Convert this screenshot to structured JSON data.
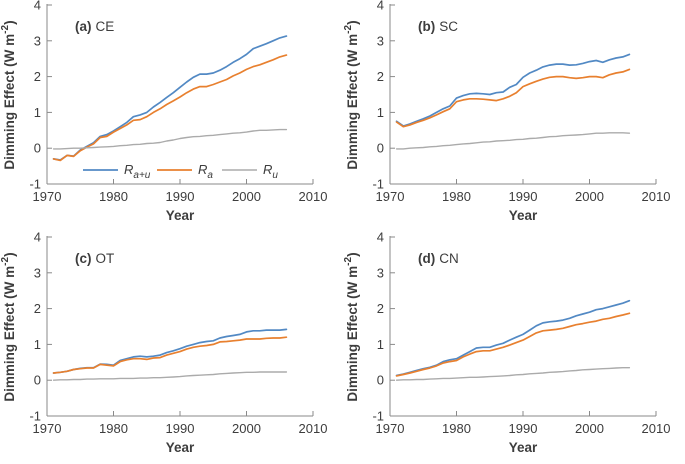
{
  "figure": {
    "background": "#ffffff",
    "text_color": "#3d3d3d",
    "axis_color": "#8a8a8a",
    "ylabel": {
      "pre": "Dimming Effect (W m",
      "sup": "-2",
      "post": ")"
    },
    "xlabel": "Year",
    "legend": {
      "position": "inside-bottom-left-panel-a",
      "entries": [
        {
          "main": "R",
          "sub": "a+u",
          "color": "#5289c4"
        },
        {
          "main": "R",
          "sub": "a",
          "color": "#e8802f"
        },
        {
          "main": "R",
          "sub": "u",
          "color": "#ababab"
        }
      ]
    }
  },
  "chart_data": [
    {
      "type": "line",
      "panel": "a",
      "title_bold": "(a)",
      "region": "CE",
      "xlabel": "Year",
      "ylabel": "Dimming Effect (W m^-2)",
      "xlim": [
        1970,
        2010
      ],
      "ylim": [
        -1,
        4
      ],
      "xticks": [
        1970,
        1980,
        1990,
        2000,
        2010
      ],
      "yticks": [
        -1,
        0,
        1,
        2,
        3,
        4
      ],
      "x_start_year": 1971,
      "x_end_year": 2006,
      "grid": false,
      "legend_visible": true,
      "series": [
        {
          "name": "R_a+u",
          "key": "ra+u",
          "color": "#5289c4",
          "values": [
            -0.3,
            -0.33,
            -0.2,
            -0.22,
            -0.05,
            0.05,
            0.15,
            0.33,
            0.38,
            0.48,
            0.6,
            0.72,
            0.88,
            0.93,
            1.0,
            1.15,
            1.28,
            1.42,
            1.55,
            1.7,
            1.85,
            1.98,
            2.07,
            2.07,
            2.1,
            2.18,
            2.28,
            2.4,
            2.5,
            2.62,
            2.78,
            2.85,
            2.92,
            3.0,
            3.08,
            3.13
          ]
        },
        {
          "name": "R_a",
          "key": "ra",
          "color": "#e8802f",
          "values": [
            -0.3,
            -0.34,
            -0.2,
            -0.23,
            -0.07,
            0.03,
            0.12,
            0.3,
            0.33,
            0.45,
            0.55,
            0.65,
            0.78,
            0.8,
            0.88,
            1.0,
            1.1,
            1.22,
            1.32,
            1.43,
            1.55,
            1.65,
            1.72,
            1.72,
            1.78,
            1.85,
            1.92,
            2.02,
            2.1,
            2.2,
            2.28,
            2.33,
            2.4,
            2.47,
            2.55,
            2.6
          ]
        },
        {
          "name": "R_u",
          "key": "ru",
          "color": "#ababab",
          "values": [
            -0.02,
            -0.02,
            -0.01,
            0.0,
            0.0,
            0.01,
            0.02,
            0.03,
            0.04,
            0.05,
            0.07,
            0.08,
            0.1,
            0.11,
            0.13,
            0.14,
            0.16,
            0.2,
            0.23,
            0.27,
            0.3,
            0.32,
            0.33,
            0.35,
            0.36,
            0.38,
            0.4,
            0.42,
            0.43,
            0.45,
            0.48,
            0.5,
            0.5,
            0.51,
            0.52,
            0.52
          ]
        }
      ]
    },
    {
      "type": "line",
      "panel": "b",
      "title_bold": "(b)",
      "region": "SC",
      "xlabel": "Year",
      "ylabel": "Dimming Effect (W m^-2)",
      "xlim": [
        1970,
        2010
      ],
      "ylim": [
        -1,
        4
      ],
      "xticks": [
        1970,
        1980,
        1990,
        2000,
        2010
      ],
      "yticks": [
        -1,
        0,
        1,
        2,
        3,
        4
      ],
      "x_start_year": 1971,
      "x_end_year": 2006,
      "grid": false,
      "legend_visible": false,
      "series": [
        {
          "name": "R_a+u",
          "key": "ra+u",
          "color": "#5289c4",
          "values": [
            0.75,
            0.62,
            0.68,
            0.75,
            0.82,
            0.9,
            1.0,
            1.1,
            1.18,
            1.4,
            1.47,
            1.52,
            1.53,
            1.52,
            1.5,
            1.55,
            1.57,
            1.7,
            1.78,
            1.98,
            2.1,
            2.18,
            2.27,
            2.32,
            2.35,
            2.35,
            2.32,
            2.33,
            2.37,
            2.42,
            2.45,
            2.4,
            2.47,
            2.52,
            2.55,
            2.62
          ]
        },
        {
          "name": "R_a",
          "key": "ra",
          "color": "#e8802f",
          "values": [
            0.73,
            0.6,
            0.65,
            0.72,
            0.78,
            0.85,
            0.93,
            1.02,
            1.1,
            1.3,
            1.35,
            1.38,
            1.38,
            1.37,
            1.35,
            1.33,
            1.38,
            1.45,
            1.55,
            1.72,
            1.8,
            1.87,
            1.93,
            1.98,
            2.0,
            2.0,
            1.97,
            1.95,
            1.97,
            2.0,
            2.0,
            1.97,
            2.05,
            2.1,
            2.13,
            2.2
          ]
        },
        {
          "name": "R_u",
          "key": "ru",
          "color": "#ababab",
          "values": [
            -0.02,
            -0.02,
            0.0,
            0.01,
            0.02,
            0.04,
            0.05,
            0.07,
            0.08,
            0.1,
            0.12,
            0.13,
            0.15,
            0.17,
            0.18,
            0.2,
            0.21,
            0.22,
            0.24,
            0.25,
            0.27,
            0.28,
            0.3,
            0.32,
            0.33,
            0.35,
            0.36,
            0.37,
            0.38,
            0.4,
            0.42,
            0.42,
            0.43,
            0.43,
            0.43,
            0.42
          ]
        }
      ]
    },
    {
      "type": "line",
      "panel": "c",
      "title_bold": "(c)",
      "region": "OT",
      "xlabel": "Year",
      "ylabel": "Dimming Effect (W m^-2)",
      "xlim": [
        1970,
        2010
      ],
      "ylim": [
        -1,
        4
      ],
      "xticks": [
        1970,
        1980,
        1990,
        2000,
        2010
      ],
      "yticks": [
        -1,
        0,
        1,
        2,
        3,
        4
      ],
      "x_start_year": 1971,
      "x_end_year": 2006,
      "grid": false,
      "legend_visible": false,
      "series": [
        {
          "name": "R_a+u",
          "key": "ra+u",
          "color": "#5289c4",
          "values": [
            0.2,
            0.22,
            0.25,
            0.3,
            0.33,
            0.35,
            0.35,
            0.45,
            0.44,
            0.42,
            0.55,
            0.6,
            0.65,
            0.67,
            0.65,
            0.67,
            0.7,
            0.77,
            0.82,
            0.88,
            0.95,
            1.0,
            1.05,
            1.08,
            1.1,
            1.18,
            1.22,
            1.25,
            1.28,
            1.35,
            1.38,
            1.38,
            1.4,
            1.4,
            1.4,
            1.42
          ]
        },
        {
          "name": "R_a",
          "key": "ra",
          "color": "#e8802f",
          "values": [
            0.2,
            0.22,
            0.25,
            0.3,
            0.32,
            0.34,
            0.34,
            0.44,
            0.42,
            0.4,
            0.52,
            0.57,
            0.6,
            0.6,
            0.58,
            0.62,
            0.63,
            0.7,
            0.75,
            0.8,
            0.87,
            0.92,
            0.95,
            0.97,
            1.0,
            1.07,
            1.08,
            1.1,
            1.12,
            1.15,
            1.15,
            1.15,
            1.17,
            1.18,
            1.18,
            1.2
          ]
        },
        {
          "name": "R_u",
          "key": "ru",
          "color": "#ababab",
          "values": [
            0.0,
            0.01,
            0.01,
            0.02,
            0.02,
            0.03,
            0.03,
            0.04,
            0.04,
            0.04,
            0.05,
            0.05,
            0.05,
            0.06,
            0.06,
            0.07,
            0.07,
            0.08,
            0.09,
            0.1,
            0.12,
            0.13,
            0.14,
            0.15,
            0.16,
            0.18,
            0.19,
            0.2,
            0.21,
            0.22,
            0.22,
            0.23,
            0.23,
            0.23,
            0.23,
            0.23
          ]
        }
      ]
    },
    {
      "type": "line",
      "panel": "d",
      "title_bold": "(d)",
      "region": "CN",
      "xlabel": "Year",
      "ylabel": "Dimming Effect (W m^-2)",
      "xlim": [
        1970,
        2010
      ],
      "ylim": [
        -1,
        4
      ],
      "xticks": [
        1970,
        1980,
        1990,
        2000,
        2010
      ],
      "yticks": [
        -1,
        0,
        1,
        2,
        3,
        4
      ],
      "x_start_year": 1971,
      "x_end_year": 2006,
      "grid": false,
      "legend_visible": false,
      "series": [
        {
          "name": "R_a+u",
          "key": "ra+u",
          "color": "#5289c4",
          "values": [
            0.13,
            0.17,
            0.22,
            0.27,
            0.32,
            0.36,
            0.42,
            0.52,
            0.57,
            0.6,
            0.7,
            0.8,
            0.9,
            0.92,
            0.92,
            0.98,
            1.03,
            1.12,
            1.2,
            1.28,
            1.4,
            1.52,
            1.6,
            1.63,
            1.65,
            1.68,
            1.73,
            1.8,
            1.85,
            1.9,
            1.97,
            2.0,
            2.05,
            2.1,
            2.15,
            2.22
          ]
        },
        {
          "name": "R_a",
          "key": "ra",
          "color": "#e8802f",
          "values": [
            0.12,
            0.16,
            0.2,
            0.25,
            0.3,
            0.34,
            0.4,
            0.48,
            0.52,
            0.55,
            0.65,
            0.73,
            0.8,
            0.82,
            0.82,
            0.87,
            0.92,
            0.98,
            1.05,
            1.12,
            1.22,
            1.32,
            1.38,
            1.4,
            1.42,
            1.45,
            1.5,
            1.55,
            1.58,
            1.62,
            1.65,
            1.7,
            1.73,
            1.78,
            1.82,
            1.87
          ]
        },
        {
          "name": "R_u",
          "key": "ru",
          "color": "#ababab",
          "values": [
            0.0,
            0.01,
            0.01,
            0.02,
            0.02,
            0.03,
            0.04,
            0.05,
            0.05,
            0.06,
            0.07,
            0.08,
            0.08,
            0.09,
            0.1,
            0.11,
            0.12,
            0.13,
            0.15,
            0.16,
            0.18,
            0.19,
            0.2,
            0.22,
            0.23,
            0.24,
            0.26,
            0.27,
            0.29,
            0.3,
            0.31,
            0.32,
            0.33,
            0.34,
            0.35,
            0.35
          ]
        }
      ]
    }
  ]
}
